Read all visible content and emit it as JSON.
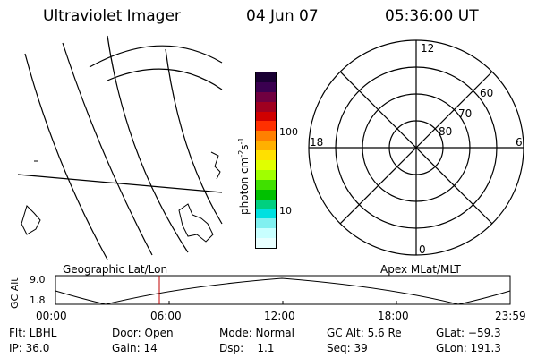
{
  "header": {
    "instrument": "Ultraviolet Imager",
    "date": "04 Jun 07",
    "time": "05:36:00 UT"
  },
  "colorbar": {
    "unit_label": "photon cm",
    "unit_sup1": "-2",
    "unit_s": "s",
    "unit_sup2": "-1",
    "ticks": [
      "100",
      "10"
    ],
    "colors": [
      "#1a0033",
      "#3a0050",
      "#700040",
      "#a00020",
      "#d00000",
      "#ff3000",
      "#ff8000",
      "#ffb000",
      "#ffe000",
      "#e0ff00",
      "#a0ff00",
      "#40e000",
      "#00c000",
      "#00d080",
      "#00e0e0",
      "#80f0f0",
      "#c8ffff",
      "#e8ffff"
    ]
  },
  "polar": {
    "mlt_labels": {
      "top": "12",
      "left": "18",
      "right": "6",
      "bottom": "0"
    },
    "lat_labels": [
      "60",
      "70",
      "80"
    ]
  },
  "panels": {
    "left_title": "Geographic Lat/Lon",
    "right_title": "Apex MLat/MLT"
  },
  "altitude_plot": {
    "ylabel": "GC Alt",
    "yticks": [
      "9.0",
      "1.8"
    ],
    "xticks": [
      "00:00",
      "06:00",
      "12:00",
      "18:00",
      "23:59"
    ],
    "marker_color": "#c00000"
  },
  "info": {
    "flt": "Flt: LBHL",
    "door": "Door: Open",
    "mode": "Mode: Normal",
    "gc_alt": "GC Alt: 5.6 Re",
    "glat": "GLat: −59.3",
    "ip": "IP: 36.0",
    "gain": "Gain: 14",
    "dsp": "Dsp:    1.1",
    "seq": "Seq: 39",
    "glon": "GLon: 191.3"
  }
}
